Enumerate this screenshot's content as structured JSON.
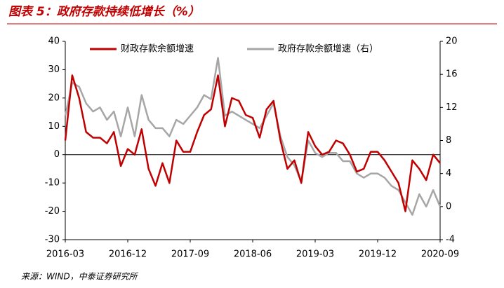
{
  "chart_data": {
    "type": "line",
    "title": "图表 5：政府存款持续低增长（%）",
    "source": "来源：WIND，中泰证券研究所",
    "categories": [
      "2016-03",
      null,
      null,
      null,
      null,
      null,
      null,
      null,
      null,
      "2016-12",
      null,
      null,
      null,
      null,
      null,
      null,
      null,
      null,
      "2017-09",
      null,
      null,
      null,
      null,
      null,
      null,
      null,
      null,
      "2018-06",
      null,
      null,
      null,
      null,
      null,
      null,
      null,
      null,
      "2019-03",
      null,
      null,
      null,
      null,
      null,
      null,
      null,
      null,
      "2019-12",
      null,
      null,
      null,
      null,
      null,
      null,
      null,
      null,
      "2020-09"
    ],
    "series": [
      {
        "name": "财政存款余额增速",
        "color": "#c00000",
        "axis": "y",
        "values": [
          5,
          28,
          20,
          8,
          6,
          6,
          4,
          8,
          -4,
          2,
          0,
          9,
          -5,
          -11,
          -3,
          -10,
          5,
          1,
          1,
          8,
          14,
          16,
          28,
          10,
          20,
          19,
          14,
          13,
          6,
          16,
          19,
          5,
          -5,
          -2,
          -10,
          8,
          3,
          0,
          1,
          5,
          4,
          0,
          -6,
          -5,
          1,
          1,
          -2,
          -6,
          -10,
          -20,
          -2,
          -5,
          -9,
          0,
          -3
        ]
      },
      {
        "name": "政府存款余额增速（右）",
        "color": "#a6a6a6",
        "axis": "y2",
        "values": [
          11,
          15,
          14.5,
          12.5,
          11.5,
          12,
          10.5,
          11.5,
          8.5,
          12,
          8.5,
          13.5,
          10.5,
          9.5,
          9.5,
          8.5,
          10.5,
          10,
          11,
          12,
          13.5,
          13,
          18,
          11,
          11.5,
          11,
          10.5,
          10,
          9.5,
          11,
          12.5,
          8.5,
          6,
          5,
          3,
          8,
          6.5,
          6,
          6.5,
          6.5,
          5.5,
          5.5,
          4,
          3.5,
          4,
          4,
          3.5,
          2.5,
          2,
          0.5,
          -1,
          1.5,
          0,
          2,
          0
        ]
      }
    ],
    "ylim": [
      -30,
      40
    ],
    "yticks": [
      -30,
      -20,
      -10,
      0,
      10,
      20,
      30,
      40
    ],
    "y2lim": [
      -4,
      20
    ],
    "y2ticks": [
      -4,
      0,
      4,
      8,
      12,
      16,
      20
    ]
  }
}
